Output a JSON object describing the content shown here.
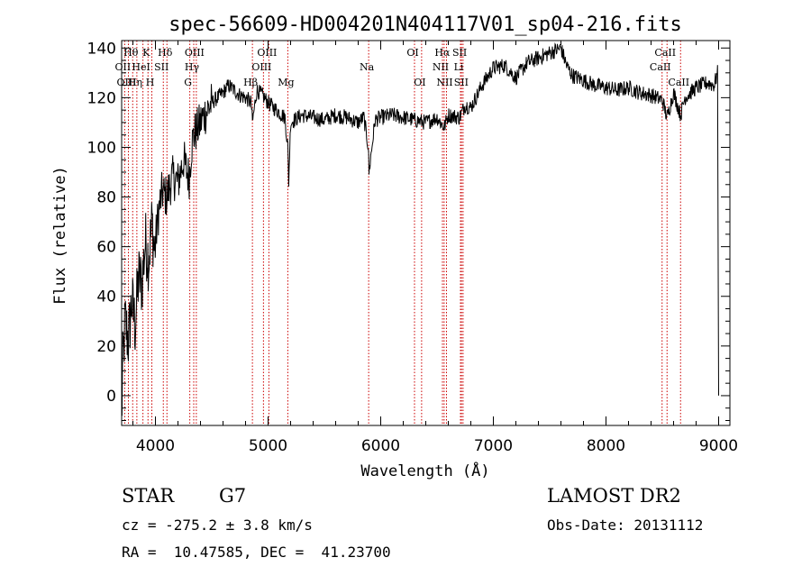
{
  "chart_data": {
    "type": "line",
    "title": "spec-56609-HD004201N404117V01_sp04-216.fits",
    "xlabel": "Wavelength (Å)",
    "ylabel": "Flux (relative)",
    "xlim": [
      3700,
      9100
    ],
    "ylim": [
      -12,
      143
    ],
    "x_ticks": [
      4000,
      5000,
      6000,
      7000,
      8000,
      9000
    ],
    "y_ticks": [
      0,
      20,
      40,
      60,
      80,
      100,
      120,
      140
    ],
    "grid": false,
    "legend": "none",
    "colors": {
      "spectrum": "#000000",
      "line_markers": "#cc0000",
      "axes": "#000000"
    },
    "spectrum": {
      "x": [
        3700,
        3710,
        3730,
        3760,
        3790,
        3820,
        3850,
        3880,
        3910,
        3940,
        3970,
        3990,
        4030,
        4060,
        4100,
        4150,
        4200,
        4250,
        4280,
        4300,
        4320,
        4340,
        4380,
        4420,
        4460,
        4500,
        4550,
        4600,
        4650,
        4700,
        4750,
        4800,
        4850,
        4861,
        4900,
        4950,
        5000,
        5050,
        5100,
        5150,
        5175,
        5183,
        5200,
        5300,
        5400,
        5500,
        5600,
        5700,
        5800,
        5850,
        5890,
        5896,
        5950,
        6000,
        6100,
        6200,
        6300,
        6400,
        6500,
        6563,
        6600,
        6700,
        6750,
        6800,
        6900,
        7000,
        7100,
        7200,
        7300,
        7400,
        7500,
        7600,
        7650,
        7700,
        7800,
        7900,
        8000,
        8100,
        8200,
        8300,
        8400,
        8500,
        8542,
        8600,
        8662,
        8700,
        8800,
        8900,
        8960,
        8990,
        9000
      ],
      "y": [
        -10,
        12,
        30,
        22,
        38,
        28,
        48,
        45,
        62,
        55,
        70,
        58,
        75,
        82,
        80,
        88,
        86,
        95,
        90,
        88,
        100,
        105,
        108,
        112,
        115,
        118,
        120,
        122,
        125,
        123,
        121,
        120,
        118,
        110,
        123,
        121,
        118,
        116,
        114,
        112,
        100,
        86,
        110,
        113,
        112,
        111,
        113,
        112,
        110,
        112,
        100,
        90,
        111,
        112,
        113,
        112,
        111,
        110,
        112,
        108,
        113,
        112,
        117,
        116,
        125,
        132,
        133,
        128,
        134,
        136,
        138,
        140,
        133,
        129,
        127,
        125,
        124,
        123,
        124,
        122,
        121,
        119,
        112,
        122,
        113,
        120,
        124,
        126,
        125,
        130,
        0
      ]
    },
    "lines": [
      {
        "label": "Hθ",
        "wavelength": 3798,
        "row": 1
      },
      {
        "label": "OII",
        "wavelength": 3727,
        "row": 2
      },
      {
        "label": "Hη",
        "wavelength": 3835,
        "row": 3
      },
      {
        "label": "OIII",
        "wavelength": 3760,
        "row": 3
      },
      {
        "label": "HeI",
        "wavelength": 3889,
        "row": 2
      },
      {
        "label": "K",
        "wavelength": 3934,
        "row": 1
      },
      {
        "label": "H",
        "wavelength": 3968,
        "row": 3
      },
      {
        "label": "SII",
        "wavelength": 4070,
        "row": 2
      },
      {
        "label": "Hδ",
        "wavelength": 4102,
        "row": 1
      },
      {
        "label": "G",
        "wavelength": 4305,
        "row": 3
      },
      {
        "label": "Hγ",
        "wavelength": 4340,
        "row": 2
      },
      {
        "label": "OIII",
        "wavelength": 4363,
        "row": 1
      },
      {
        "label": "Hβ",
        "wavelength": 4861,
        "row": 3
      },
      {
        "label": "OIII",
        "wavelength": 4959,
        "row": 2
      },
      {
        "label": "OIII",
        "wavelength": 5007,
        "row": 1
      },
      {
        "label": "Mg",
        "wavelength": 5175,
        "row": 3
      },
      {
        "label": "Na",
        "wavelength": 5893,
        "row": 2
      },
      {
        "label": "OI",
        "wavelength": 6300,
        "row": 1
      },
      {
        "label": "OI",
        "wavelength": 6363,
        "row": 3
      },
      {
        "label": "NII",
        "wavelength": 6548,
        "row": 2
      },
      {
        "label": "Hα",
        "wavelength": 6563,
        "row": 1
      },
      {
        "label": "NII",
        "wavelength": 6584,
        "row": 3
      },
      {
        "label": "Li",
        "wavelength": 6708,
        "row": 2
      },
      {
        "label": "SII",
        "wavelength": 6717,
        "row": 1
      },
      {
        "label": "SII",
        "wavelength": 6731,
        "row": 3
      },
      {
        "label": "CaII",
        "wavelength": 8498,
        "row": 2
      },
      {
        "label": "CaII",
        "wavelength": 8542,
        "row": 1
      },
      {
        "label": "CaII",
        "wavelength": 8662,
        "row": 3
      }
    ]
  },
  "info": {
    "class_label": "STAR",
    "subclass": "G7",
    "survey": "LAMOST DR2",
    "cz": "cz = -275.2 ± 3.8 km/s",
    "obs_date": "Obs-Date: 20131112",
    "coords": "RA =  10.47585, DEC =  41.23700"
  }
}
